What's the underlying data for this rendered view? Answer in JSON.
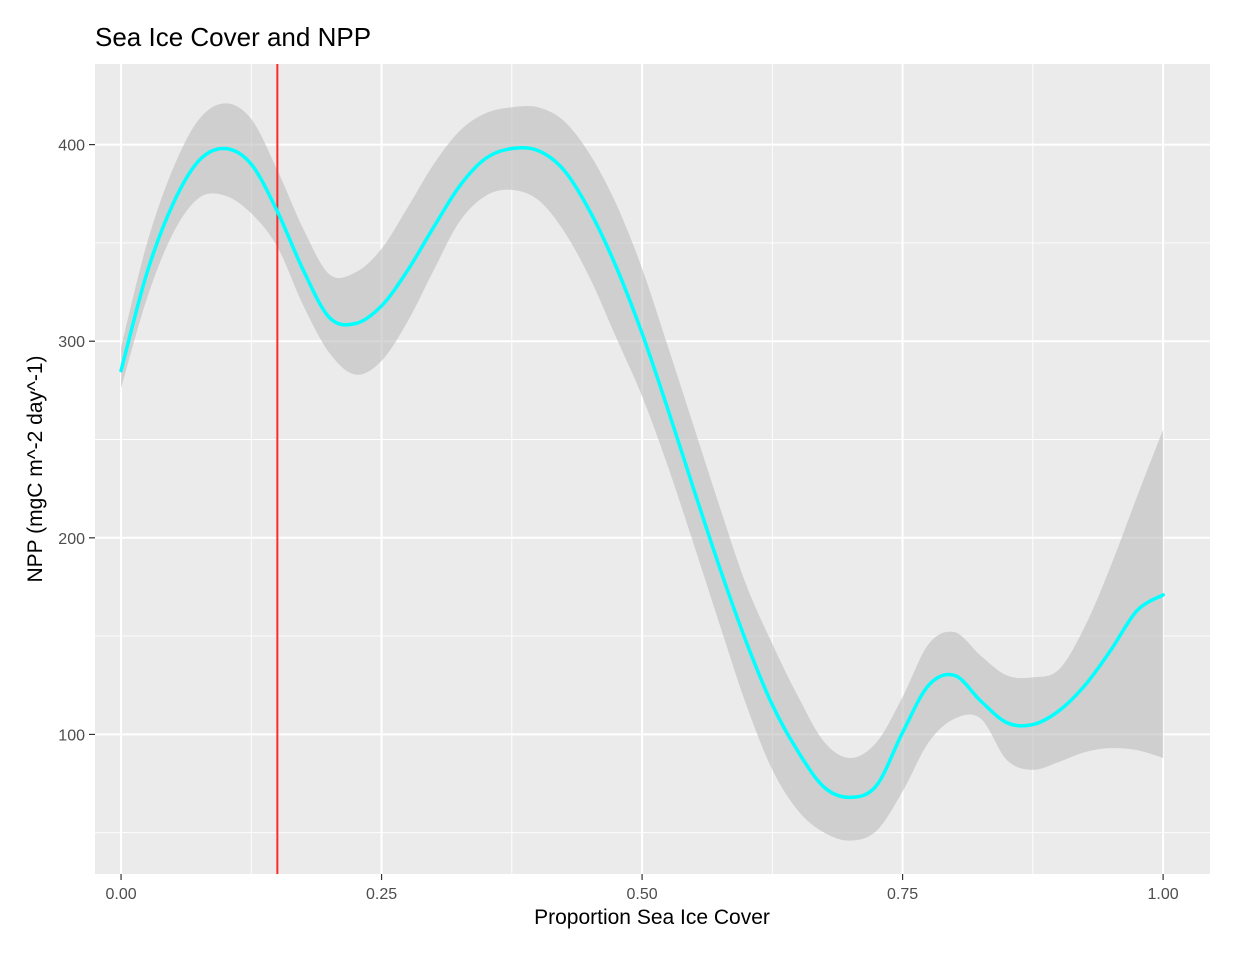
{
  "chart_data": {
    "type": "line",
    "title": "Sea Ice Cover and NPP",
    "xlabel": "Proportion Sea Ice Cover",
    "ylabel": "NPP (mgC m^-2 day^-1)",
    "xlim": [
      -0.025,
      1.045
    ],
    "ylim": [
      29,
      441
    ],
    "x_ticks": [
      0.0,
      0.25,
      0.5,
      0.75,
      1.0
    ],
    "x_tick_labels": [
      "0.00",
      "0.25",
      "0.50",
      "0.75",
      "1.00"
    ],
    "y_ticks": [
      100,
      200,
      300,
      400
    ],
    "y_tick_labels": [
      "100",
      "200",
      "300",
      "400"
    ],
    "grid": true,
    "panel_background": "#ebebeb",
    "grid_color": "#ffffff",
    "reference_line": {
      "x": 0.15,
      "color": "#ff2a2a"
    },
    "series": [
      {
        "color": "#00ffff",
        "ribbon_color": "#bebebe",
        "x": [
          0.0,
          0.025,
          0.05,
          0.075,
          0.1,
          0.125,
          0.15,
          0.175,
          0.2,
          0.225,
          0.25,
          0.275,
          0.3,
          0.325,
          0.35,
          0.375,
          0.4,
          0.425,
          0.45,
          0.475,
          0.5,
          0.525,
          0.55,
          0.575,
          0.6,
          0.625,
          0.65,
          0.675,
          0.7,
          0.725,
          0.75,
          0.775,
          0.8,
          0.825,
          0.85,
          0.875,
          0.9,
          0.925,
          0.95,
          0.975,
          1.0
        ],
        "y": [
          285,
          335,
          370,
          392,
          398,
          390,
          366,
          336,
          312,
          309,
          318,
          336,
          358,
          379,
          393,
          398,
          397,
          387,
          366,
          338,
          304,
          265,
          224,
          184,
          147,
          115,
          91,
          73,
          68,
          74,
          101,
          125,
          130,
          117,
          106,
          105,
          112,
          125,
          143,
          163,
          171
        ],
        "lower": [
          276,
          322,
          355,
          373,
          374,
          365,
          348,
          318,
          294,
          283,
          290,
          310,
          336,
          361,
          374,
          377,
          372,
          356,
          332,
          302,
          272,
          236,
          196,
          155,
          115,
          82,
          61,
          50,
          46,
          51,
          71,
          96,
          108,
          108,
          87,
          82,
          86,
          91,
          93,
          92,
          88
        ],
        "upper": [
          297,
          350,
          388,
          413,
          421,
          413,
          387,
          357,
          334,
          335,
          347,
          368,
          390,
          407,
          416,
          419,
          419,
          412,
          395,
          370,
          337,
          297,
          256,
          215,
          176,
          146,
          119,
          96,
          88,
          96,
          119,
          146,
          152,
          140,
          130,
          129,
          133,
          155,
          186,
          221,
          255
        ]
      }
    ]
  }
}
